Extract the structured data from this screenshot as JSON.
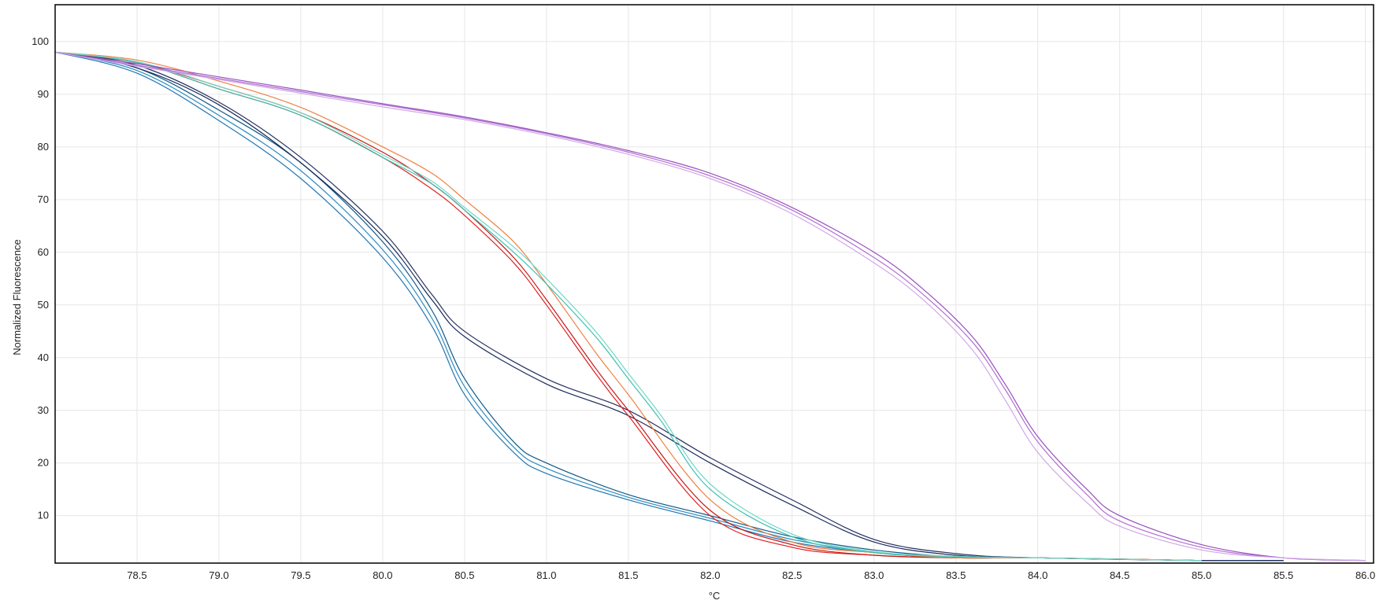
{
  "chart_data": {
    "type": "line",
    "title": "",
    "xlabel": "°C",
    "ylabel": "Normalized Fluorescence",
    "xlim": [
      78.0,
      86.05
    ],
    "ylim": [
      1,
      107
    ],
    "grid": true,
    "legend": "none",
    "x_ticks": [
      "78.5",
      "79.0",
      "79.5",
      "80.0",
      "80.5",
      "81.0",
      "81.5",
      "82.0",
      "82.5",
      "83.0",
      "83.5",
      "84.0",
      "84.5",
      "85.0",
      "85.5",
      "86.0"
    ],
    "y_ticks": [
      "100",
      "90",
      "80",
      "70",
      "60",
      "50",
      "40",
      "30",
      "20",
      "10"
    ],
    "series": [
      {
        "color": "#1f77b4",
        "x": [
          78.0,
          78.5,
          79.0,
          79.5,
          80.0,
          80.3,
          80.5,
          80.8,
          81.0,
          81.5,
          82.0,
          82.5,
          83.0,
          83.5,
          84.0,
          85.0,
          85.5
        ],
        "y": [
          98,
          94,
          85,
          74,
          59,
          46,
          33,
          22,
          18,
          13,
          9,
          5,
          3,
          2,
          2,
          1.5,
          1.5
        ]
      },
      {
        "color": "#2e8bc0",
        "x": [
          78.0,
          78.5,
          79.0,
          79.5,
          80.0,
          80.3,
          80.5,
          80.8,
          81.0,
          81.5,
          82.0,
          82.5,
          83.0,
          83.5,
          84.0,
          85.0,
          85.5
        ],
        "y": [
          98,
          94.5,
          86,
          75.5,
          60.5,
          47.5,
          34.5,
          23,
          19,
          13.5,
          9.5,
          5.5,
          3,
          2,
          2,
          1.5,
          1.5
        ]
      },
      {
        "color": "#0e5a8a",
        "x": [
          78.0,
          78.5,
          79.0,
          79.5,
          80.0,
          80.3,
          80.5,
          80.8,
          81.0,
          81.5,
          82.0,
          82.5,
          83.0,
          83.5,
          84.0,
          85.0,
          85.5
        ],
        "y": [
          98,
          95,
          87,
          77,
          62,
          49,
          36,
          24,
          20,
          14,
          10,
          6,
          3.5,
          2.2,
          2,
          1.5,
          1.5
        ]
      },
      {
        "color": "#1a2a5a",
        "x": [
          78.0,
          78.5,
          79.0,
          79.5,
          80.0,
          80.3,
          80.5,
          81.0,
          81.5,
          82.0,
          82.5,
          83.0,
          83.5,
          84.0,
          85.0,
          85.5
        ],
        "y": [
          98,
          95,
          88,
          77,
          63,
          51,
          44,
          35,
          29,
          20,
          12,
          5,
          2.5,
          2,
          1.5,
          1.5
        ]
      },
      {
        "color": "#25305e",
        "x": [
          78.0,
          78.5,
          79.0,
          79.5,
          80.0,
          80.3,
          80.5,
          81.0,
          81.5,
          82.0,
          82.5,
          83.0,
          83.5,
          84.0,
          85.0,
          85.5
        ],
        "y": [
          98,
          95.5,
          88.5,
          78,
          64,
          52,
          45,
          36,
          30,
          21,
          13,
          5.5,
          2.8,
          2,
          1.5,
          1.5
        ]
      },
      {
        "color": "#e02020",
        "x": [
          78.0,
          78.5,
          79.0,
          79.5,
          80.0,
          80.3,
          80.5,
          80.8,
          81.0,
          81.3,
          81.5,
          82.0,
          82.5,
          83.0,
          83.5,
          84.0,
          85.0
        ],
        "y": [
          98,
          96,
          91,
          86,
          78,
          72,
          67,
          58,
          50,
          37,
          29,
          10,
          4,
          2.5,
          2,
          2,
          1.5
        ]
      },
      {
        "color": "#c81818",
        "x": [
          78.0,
          78.5,
          79.0,
          79.5,
          80.0,
          80.3,
          80.5,
          80.8,
          81.0,
          81.3,
          81.5,
          82.0,
          82.5,
          83.0,
          83.5,
          84.0,
          85.0
        ],
        "y": [
          98,
          96,
          91.5,
          86.5,
          79,
          73,
          68,
          59,
          51,
          38,
          30,
          11,
          4.5,
          2.5,
          2,
          2,
          1.5
        ]
      },
      {
        "color": "#f08040",
        "x": [
          78.0,
          78.5,
          79.0,
          79.5,
          80.0,
          80.3,
          80.5,
          80.8,
          81.0,
          81.3,
          81.5,
          82.0,
          82.5,
          83.0,
          83.5,
          84.0,
          85.0
        ],
        "y": [
          98,
          96.5,
          92.5,
          87.5,
          80,
          75,
          70,
          62,
          54,
          41,
          33,
          13,
          5,
          3,
          2,
          2,
          1.5
        ]
      },
      {
        "color": "#40c0b0",
        "x": [
          78.0,
          78.5,
          79.0,
          79.5,
          80.0,
          80.3,
          80.5,
          80.8,
          81.0,
          81.3,
          81.5,
          81.7,
          82.0,
          82.5,
          83.0,
          83.5,
          84.0,
          85.0
        ],
        "y": [
          98,
          96,
          91,
          86,
          78,
          73,
          68,
          60,
          54,
          44,
          36,
          28,
          15,
          6,
          3,
          2.2,
          2,
          1.5
        ]
      },
      {
        "color": "#70d8c8",
        "x": [
          78.0,
          78.5,
          79.0,
          79.5,
          80.0,
          80.3,
          80.5,
          80.8,
          81.0,
          81.3,
          81.5,
          81.7,
          82.0,
          82.5,
          83.0,
          83.5,
          84.0,
          85.0
        ],
        "y": [
          98,
          96.2,
          91.5,
          86.5,
          78.5,
          73.5,
          68.5,
          61,
          55,
          45,
          37,
          29,
          16,
          6.5,
          3.2,
          2.3,
          2,
          1.5
        ]
      },
      {
        "color": "#b070d0",
        "x": [
          78.0,
          78.5,
          79.0,
          79.5,
          80.0,
          80.5,
          81.0,
          81.5,
          82.0,
          82.5,
          83.0,
          83.3,
          83.6,
          83.8,
          84.0,
          84.3,
          84.5,
          85.0,
          85.5,
          86.0
        ],
        "y": [
          98,
          95.5,
          93,
          90.5,
          88,
          85.5,
          82.5,
          79,
          74.5,
          68,
          59,
          52,
          43,
          34,
          24,
          14,
          9,
          4,
          2,
          1.5
        ]
      },
      {
        "color": "#9850c0",
        "x": [
          78.0,
          78.5,
          79.0,
          79.5,
          80.0,
          80.5,
          81.0,
          81.5,
          82.0,
          82.5,
          83.0,
          83.3,
          83.6,
          83.8,
          84.0,
          84.3,
          84.5,
          85.0,
          85.5,
          86.0
        ],
        "y": [
          98,
          95.8,
          93.3,
          90.8,
          88.2,
          85.7,
          82.7,
          79.3,
          75,
          68.5,
          60,
          53,
          44,
          35,
          25,
          15,
          10,
          4.5,
          2,
          1.5
        ]
      },
      {
        "color": "#d0a8e8",
        "x": [
          78.0,
          78.5,
          79.0,
          79.5,
          80.0,
          80.5,
          81.0,
          81.5,
          82.0,
          82.5,
          83.0,
          83.3,
          83.6,
          83.8,
          84.0,
          84.3,
          84.5,
          85.0,
          85.5,
          86.0
        ],
        "y": [
          98,
          95.3,
          92.8,
          90.2,
          87.6,
          85.2,
          82.2,
          78.6,
          74,
          67.3,
          58,
          51,
          41.5,
          32,
          22,
          12.5,
          8,
          3.5,
          2,
          1.5
        ]
      }
    ]
  }
}
